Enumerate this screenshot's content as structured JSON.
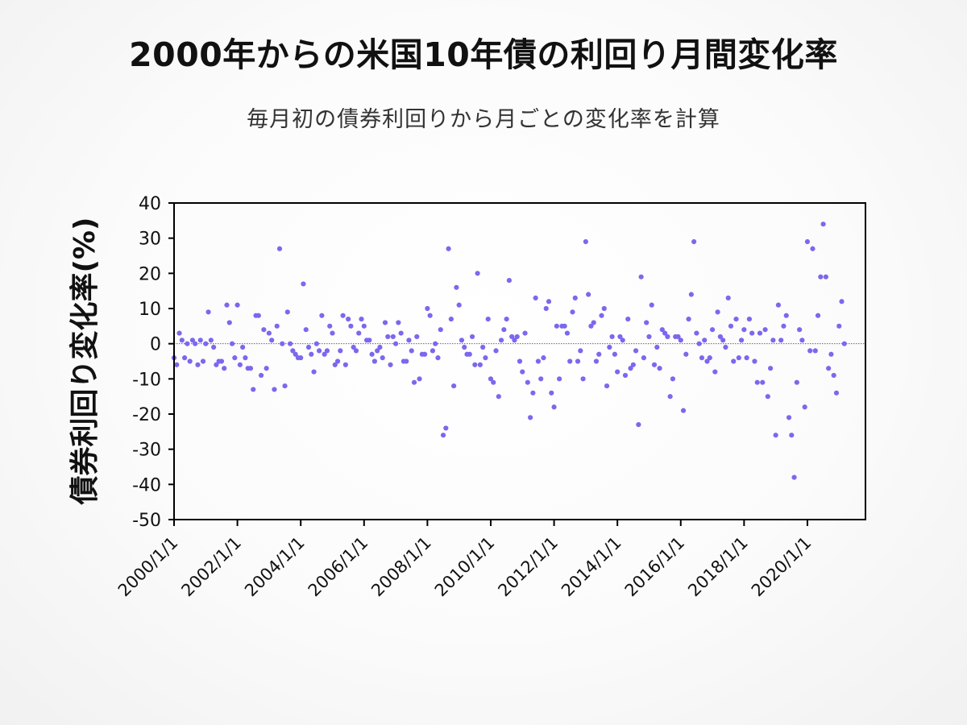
{
  "chart_data": {
    "type": "scatter",
    "title": "2000年からの米国10年債の利回り月間変化率",
    "subtitle": "毎月初の債券利回りから月ごとの変化率を計算",
    "ylabel": "債券利回り変化率(%)",
    "xlabel": "",
    "ylim": [
      -50,
      40
    ],
    "yticks": [
      40,
      30,
      20,
      10,
      0,
      -10,
      -20,
      -30,
      -40,
      -50
    ],
    "xlim": [
      "2000-01-01",
      "2021-11-01"
    ],
    "xticks": [
      "2000/1/1",
      "2002/1/1",
      "2004/1/1",
      "2006/1/1",
      "2008/1/1",
      "2010/1/1",
      "2012/1/1",
      "2014/1/1",
      "2016/1/1",
      "2018/1/1",
      "2020/1/1"
    ],
    "zero_line": true,
    "grid": false,
    "point_color": "#7b68ee",
    "series": [
      {
        "x_start": "2000-01",
        "x_step": "1 month",
        "values": [
          -4,
          -6,
          3,
          1,
          -4,
          0,
          -5,
          1,
          0,
          -6,
          1,
          -5,
          0,
          9,
          1,
          -1,
          -6,
          -5,
          -5,
          -7,
          11,
          6,
          0,
          -4,
          11,
          -6,
          -1,
          -4,
          -7,
          -7,
          -13,
          8,
          8,
          -9,
          4,
          -7,
          3,
          1,
          -13,
          5,
          27,
          0,
          -12,
          9,
          0,
          -2,
          -3,
          -4,
          -4,
          17,
          4,
          -1,
          -3,
          -8,
          0,
          -2,
          8,
          -3,
          -2,
          5,
          3,
          -6,
          -5,
          -2,
          8,
          -6,
          7,
          5,
          -1,
          -2,
          3,
          7,
          5,
          1,
          1,
          -3,
          -5,
          -2,
          -1,
          -4,
          6,
          2,
          -6,
          2,
          0,
          6,
          3,
          -5,
          -5,
          1,
          -2,
          -11,
          2,
          -10,
          -3,
          -3,
          10,
          8,
          -2,
          0,
          -4,
          4,
          -26,
          -24,
          27,
          7,
          -12,
          16,
          11,
          1,
          -1,
          -3,
          -3,
          2,
          -6,
          20,
          -6,
          -1,
          -4,
          7,
          -10,
          -11,
          -2,
          -15,
          1,
          4,
          7,
          18,
          2,
          1,
          2,
          -5,
          -8,
          3,
          -11,
          -21,
          -14,
          13,
          -5,
          -10,
          -4,
          10,
          12,
          -14,
          -18,
          5,
          -10,
          5,
          5,
          3,
          -5,
          9,
          13,
          -5,
          -2,
          -10,
          29,
          14,
          5,
          6,
          -5,
          -3,
          8,
          10,
          -12,
          -1,
          2,
          -3,
          -8,
          2,
          1,
          -9,
          7,
          -7,
          -6,
          -2,
          -23,
          19,
          -4,
          6,
          2,
          11,
          -6,
          -1,
          -7,
          4,
          3,
          2,
          -15,
          -10,
          2,
          2,
          1,
          -19,
          -3,
          7,
          14,
          29,
          3,
          0,
          -4,
          1,
          -5,
          -4,
          4,
          -8,
          9,
          2,
          1,
          -1,
          13,
          5,
          -5,
          7,
          -4,
          1,
          4,
          -4,
          7,
          3,
          -5,
          -11,
          3,
          -11,
          4,
          -15,
          -7,
          1,
          -26,
          11,
          1,
          5,
          8,
          -21,
          -26,
          -38,
          -11,
          4,
          1,
          -18,
          29,
          -2,
          27,
          -2,
          8,
          19,
          34,
          19,
          -7,
          -3,
          -9,
          -14,
          5,
          12,
          0
        ]
      }
    ]
  }
}
